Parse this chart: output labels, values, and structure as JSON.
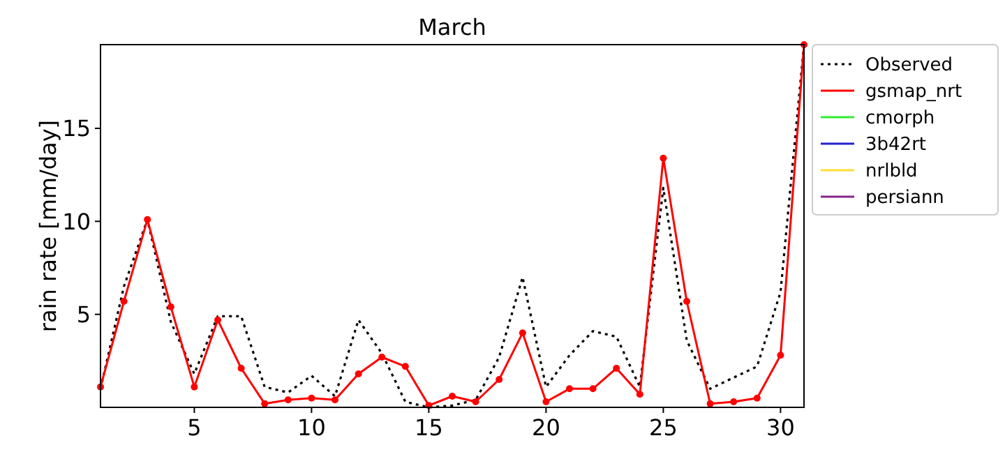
{
  "chart_data": {
    "type": "line",
    "title": "March",
    "ylabel": "rain rate [mm/day]",
    "x": [
      1,
      2,
      3,
      4,
      5,
      6,
      7,
      8,
      9,
      10,
      11,
      12,
      13,
      14,
      15,
      16,
      17,
      18,
      19,
      20,
      21,
      22,
      23,
      24,
      25,
      26,
      27,
      28,
      29,
      30,
      31
    ],
    "xlim": [
      1,
      31
    ],
    "xticks": [
      5,
      10,
      15,
      20,
      25,
      30
    ],
    "ylim": [
      0,
      19.5
    ],
    "yticks": [
      5,
      10,
      15
    ],
    "grid": false,
    "legend": "top right",
    "series": [
      {
        "name": "Observed",
        "color": "#000000",
        "line_style": "dotted",
        "marker": "none",
        "values": [
          1.0,
          6.5,
          10.1,
          4.6,
          1.8,
          4.9,
          4.9,
          1.1,
          0.8,
          1.7,
          0.6,
          4.7,
          2.9,
          0.3,
          0.0,
          0.1,
          0.4,
          2.7,
          7.0,
          1.1,
          2.8,
          4.1,
          3.8,
          1.1,
          11.8,
          3.6,
          1.0,
          1.6,
          2.2,
          6.2,
          19.5
        ]
      },
      {
        "name": "gsmap_nrt",
        "color": "#ff0000",
        "line_style": "solid",
        "marker": "circle",
        "values": [
          1.1,
          5.7,
          10.1,
          5.4,
          1.1,
          4.7,
          2.1,
          0.2,
          0.4,
          0.5,
          0.4,
          1.8,
          2.7,
          2.2,
          0.1,
          0.6,
          0.3,
          1.5,
          4.0,
          0.3,
          1.0,
          1.0,
          2.1,
          0.7,
          13.4,
          5.7,
          0.2,
          0.3,
          0.5,
          2.8,
          19.5
        ]
      },
      {
        "name": "cmorph",
        "color": "#33ee33",
        "line_style": "solid",
        "marker": "none",
        "values": [
          null,
          null,
          null,
          null,
          null,
          null,
          null,
          null,
          null,
          null,
          null,
          null,
          null,
          null,
          null,
          null,
          null,
          null,
          null,
          null,
          null,
          null,
          null,
          null,
          null,
          null,
          null,
          null,
          null,
          null,
          null
        ]
      },
      {
        "name": "3b42rt",
        "color": "#2222cc",
        "line_style": "solid",
        "marker": "none",
        "values": [
          null,
          null,
          null,
          null,
          null,
          null,
          null,
          null,
          null,
          null,
          null,
          null,
          null,
          null,
          null,
          null,
          null,
          null,
          null,
          null,
          null,
          null,
          null,
          null,
          null,
          null,
          null,
          null,
          null,
          null,
          null
        ]
      },
      {
        "name": "nrlbld",
        "color": "#ffdd33",
        "line_style": "solid",
        "marker": "none",
        "values": [
          null,
          null,
          null,
          null,
          null,
          null,
          null,
          null,
          null,
          null,
          null,
          null,
          null,
          null,
          null,
          null,
          null,
          null,
          null,
          null,
          null,
          null,
          null,
          null,
          null,
          null,
          null,
          null,
          null,
          null,
          null
        ]
      },
      {
        "name": "persiann",
        "color": "#882288",
        "line_style": "solid",
        "marker": "none",
        "values": [
          null,
          null,
          null,
          null,
          null,
          null,
          null,
          null,
          null,
          null,
          null,
          null,
          null,
          null,
          null,
          null,
          null,
          null,
          null,
          null,
          null,
          null,
          null,
          null,
          null,
          null,
          null,
          null,
          null,
          null,
          null
        ]
      }
    ]
  }
}
